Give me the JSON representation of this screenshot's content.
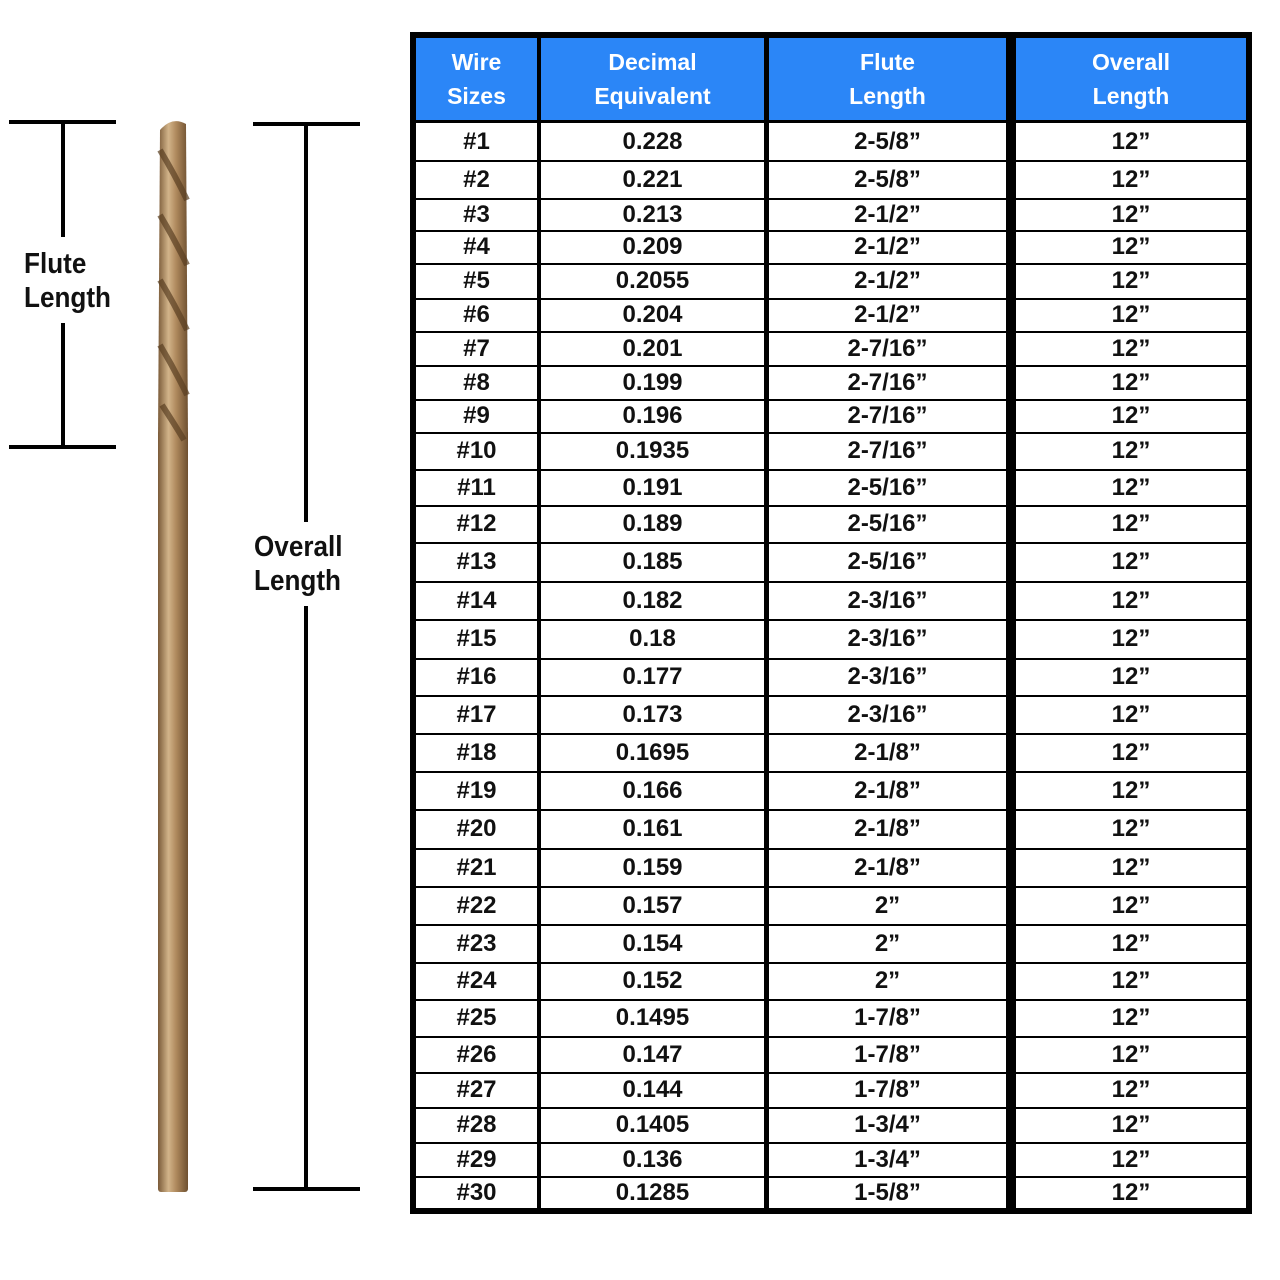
{
  "labels": {
    "flute_length": "Flute\nLength",
    "overall_length": "Overall\nLength"
  },
  "colors": {
    "header_bg": "#2b86f7",
    "header_text": "#ffffff",
    "grid": "#000000",
    "drill": "#b08a5e"
  },
  "table": {
    "columns": [
      "Wire\nSizes",
      "Decimal\nEquivalent",
      "Flute\nLength",
      "Overall\nLength"
    ],
    "rows": [
      [
        "#1",
        "0.228",
        "2-5/8”",
        "12”"
      ],
      [
        "#2",
        "0.221",
        "2-5/8”",
        "12”"
      ],
      [
        "#3",
        "0.213",
        "2-1/2”",
        "12”"
      ],
      [
        "#4",
        "0.209",
        "2-1/2”",
        "12”"
      ],
      [
        "#5",
        "0.2055",
        "2-1/2”",
        "12”"
      ],
      [
        "#6",
        "0.204",
        "2-1/2”",
        "12”"
      ],
      [
        "#7",
        "0.201",
        "2-7/16”",
        "12”"
      ],
      [
        "#8",
        "0.199",
        "2-7/16”",
        "12”"
      ],
      [
        "#9",
        "0.196",
        "2-7/16”",
        "12”"
      ],
      [
        "#10",
        "0.1935",
        "2-7/16”",
        "12”"
      ],
      [
        "#11",
        "0.191",
        "2-5/16”",
        "12”"
      ],
      [
        "#12",
        "0.189",
        "2-5/16”",
        "12”"
      ],
      [
        "#13",
        "0.185",
        "2-5/16”",
        "12”"
      ],
      [
        "#14",
        "0.182",
        "2-3/16”",
        "12”"
      ],
      [
        "#15",
        "0.18",
        "2-3/16”",
        "12”"
      ],
      [
        "#16",
        "0.177",
        "2-3/16”",
        "12”"
      ],
      [
        "#17",
        "0.173",
        "2-3/16”",
        "12”"
      ],
      [
        "#18",
        "0.1695",
        "2-1/8”",
        "12”"
      ],
      [
        "#19",
        "0.166",
        "2-1/8”",
        "12”"
      ],
      [
        "#20",
        "0.161",
        "2-1/8”",
        "12”"
      ],
      [
        "#21",
        "0.159",
        "2-1/8”",
        "12”"
      ],
      [
        "#22",
        "0.157",
        "2”",
        "12”"
      ],
      [
        "#23",
        "0.154",
        "2”",
        "12”"
      ],
      [
        "#24",
        "0.152",
        "2”",
        "12”"
      ],
      [
        "#25",
        "0.1495",
        "1-7/8”",
        "12”"
      ],
      [
        "#26",
        "0.147",
        "1-7/8”",
        "12”"
      ],
      [
        "#27",
        "0.144",
        "1-7/8”",
        "12”"
      ],
      [
        "#28",
        "0.1405",
        "1-3/4”",
        "12”"
      ],
      [
        "#29",
        "0.136",
        "1-3/4”",
        "12”"
      ],
      [
        "#30",
        "0.1285",
        "1-5/8”",
        "12”"
      ]
    ]
  }
}
